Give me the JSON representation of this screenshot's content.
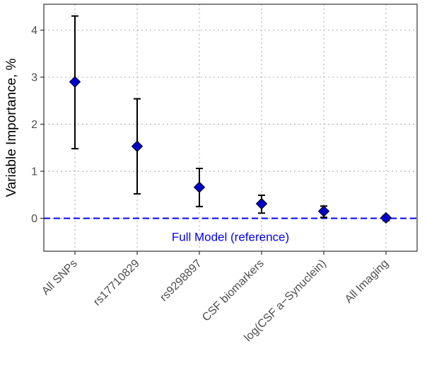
{
  "chart_data": {
    "type": "scatter",
    "title": "",
    "xlabel": "",
    "ylabel": "Variable Importance, %",
    "ylim": [
      -0.7,
      4.55
    ],
    "yticks": [
      0,
      1,
      2,
      3,
      4
    ],
    "grid": true,
    "categories": [
      "All SNPs",
      "rs17710829",
      "rs9298897",
      "CSF biomarkers",
      "log(CSF a−Synuclein)",
      "All Imaging"
    ],
    "series": [
      {
        "values": [
          2.9,
          1.53,
          0.66,
          0.31,
          0.15,
          0.01
        ],
        "lower": [
          1.48,
          0.52,
          0.25,
          0.11,
          0.02,
          -0.05
        ],
        "upper": [
          4.3,
          2.54,
          1.06,
          0.49,
          0.26,
          0.06
        ]
      }
    ],
    "reference_line": {
      "y": 0,
      "label": "Full Model (reference)",
      "style": "dashed"
    },
    "colors": {
      "marker": "#0000cc",
      "reference": "#0000ff",
      "error_bar": "#000000",
      "grid": "#b3b3b3"
    }
  }
}
